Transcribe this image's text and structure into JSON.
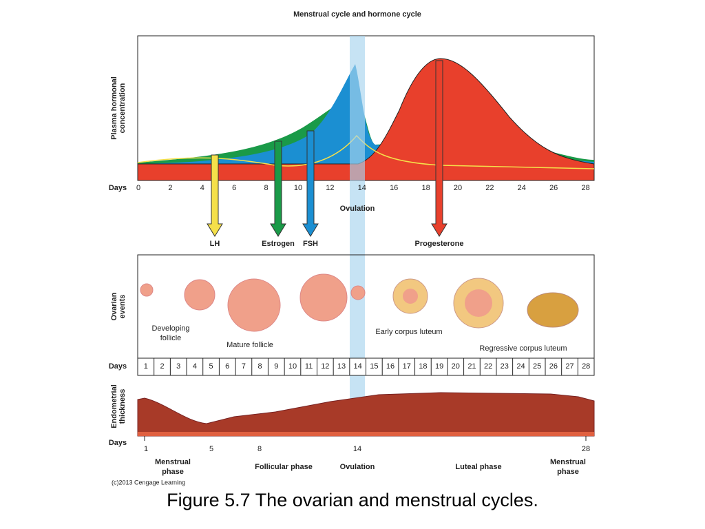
{
  "title": "Menstrual cycle and hormone cycle",
  "hormone_chart": {
    "y_label_lines": [
      "Plasma hormonal",
      "concentration"
    ],
    "x_label": "Days",
    "x_ticks": [
      "0",
      "2",
      "4",
      "6",
      "8",
      "10",
      "12",
      "14",
      "16",
      "18",
      "20",
      "22",
      "24",
      "26",
      "28"
    ],
    "ovulation": "Ovulation",
    "hormones": [
      "LH",
      "Estrogen",
      "FSH",
      "Progesterone"
    ]
  },
  "ovarian": {
    "y_label_lines": [
      "Ovarian",
      "events"
    ],
    "stages": [
      {
        "lines": [
          "Developing",
          "follicle"
        ]
      },
      {
        "lines": [
          "Mature follicle"
        ]
      },
      {
        "lines": [
          "Early corpus luteum"
        ]
      },
      {
        "lines": [
          "Regressive corpus luteum"
        ]
      }
    ],
    "days_label": "Days",
    "days": [
      "1",
      "2",
      "3",
      "4",
      "5",
      "6",
      "7",
      "8",
      "9",
      "10",
      "11",
      "12",
      "13",
      "14",
      "15",
      "16",
      "17",
      "18",
      "19",
      "20",
      "21",
      "22",
      "23",
      "24",
      "25",
      "26",
      "27",
      "28"
    ]
  },
  "endometrium": {
    "y_label_lines": [
      "Endometrial",
      "thickness"
    ],
    "days_label": "Days",
    "days": [
      "1",
      "5",
      "8",
      "14",
      "28"
    ]
  },
  "phases": [
    {
      "lines": [
        "Menstrual",
        "phase"
      ]
    },
    {
      "lines": [
        "Follicular phase"
      ]
    },
    {
      "lines": [
        "Ovulation"
      ]
    },
    {
      "lines": [
        "Luteal phase"
      ]
    },
    {
      "lines": [
        "Menstrual",
        "phase"
      ]
    }
  ],
  "credit": "(c)2013 Cengage Learning",
  "caption": "Figure 5.7 The ovarian and menstrual cycles."
}
